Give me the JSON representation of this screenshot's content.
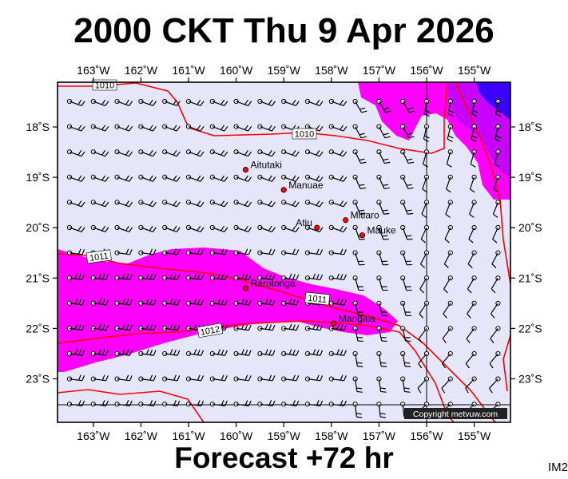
{
  "title": "2000 CKT Thu 9 Apr 2026",
  "footer": "Forecast +72 hr",
  "corner_label": "IM2",
  "copyright": "Copyright metvuw.com",
  "lon_labels": [
    "163˚W",
    "162˚W",
    "161˚W",
    "160˚W",
    "159˚W",
    "158˚W",
    "157˚W",
    "156˚W",
    "155˚W"
  ],
  "lat_labels": [
    "18˚S",
    "19˚S",
    "20˚S",
    "21˚S",
    "22˚S",
    "23˚S"
  ],
  "isobar_labels": [
    "1010",
    "1010",
    "1011",
    "1011",
    "1012"
  ],
  "places": [
    {
      "name": "Aitutaki",
      "lon": -159.8,
      "lat": -18.85
    },
    {
      "name": "Manuae",
      "lon": -159.0,
      "lat": -19.25
    },
    {
      "name": "Mitiaro",
      "lon": -157.7,
      "lat": -19.85
    },
    {
      "name": "Atiu",
      "lon": -158.3,
      "lat": -20.0
    },
    {
      "name": "Mauke",
      "lon": -157.35,
      "lat": -20.15
    },
    {
      "name": "Rarotonga",
      "lon": -159.8,
      "lat": -21.2
    },
    {
      "name": "Mangaia",
      "lon": -157.95,
      "lat": -21.9
    }
  ],
  "colors": {
    "background": "#e6e6fa",
    "rain_light": "#ff00ff",
    "rain_mid": "#c800ff",
    "rain_heavy": "#3c00ff",
    "isobar": "#ff0000",
    "place_dot": "#ff0000"
  }
}
